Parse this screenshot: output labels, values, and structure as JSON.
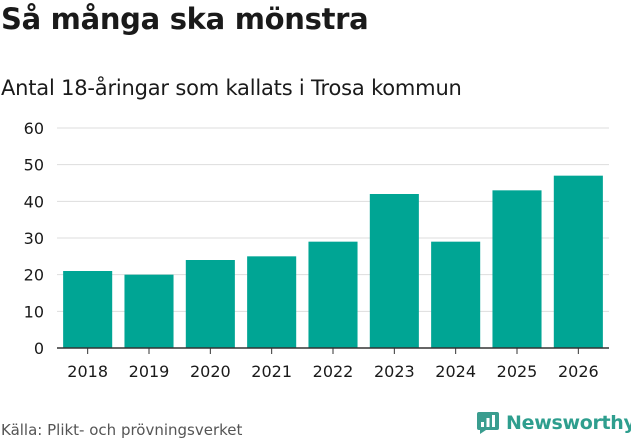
{
  "chart_data": {
    "type": "bar",
    "title": "Så många ska mönstra",
    "subtitle": "Antal 18-åringar som kallats i Trosa kommun",
    "categories": [
      "2018",
      "2019",
      "2020",
      "2021",
      "2022",
      "2023",
      "2024",
      "2025",
      "2026"
    ],
    "values": [
      21,
      20,
      24,
      25,
      29,
      42,
      29,
      43,
      47
    ],
    "xlabel": "",
    "ylabel": "",
    "ylim": [
      0,
      60
    ],
    "yticks": [
      0,
      10,
      20,
      30,
      40,
      50,
      60
    ],
    "grid": true,
    "bar_color": "#00a594",
    "grid_color": "#dddddd",
    "axis_color": "#333333"
  },
  "footer": {
    "source": "Källa: Plikt- och prövningsverket",
    "brand": "Newsworthy",
    "brand_color": "#2e9e8e",
    "brand_icon": "newsworthy-logo-icon"
  }
}
